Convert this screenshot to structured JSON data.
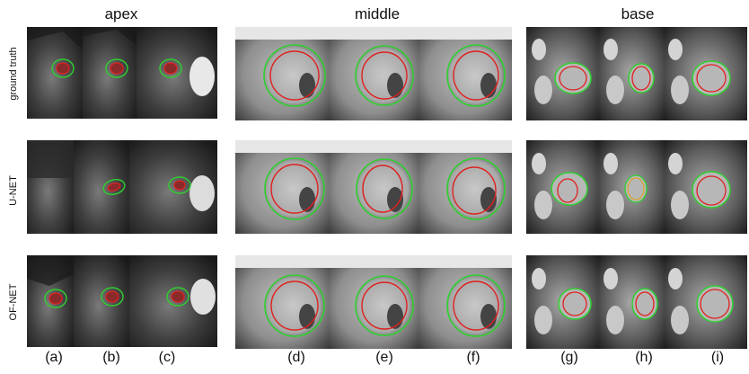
{
  "groups": {
    "apex": "apex",
    "middle": "middle",
    "base": "base"
  },
  "rows": {
    "gt": "ground truth",
    "unet": "U-NET",
    "ofnet": "OF-NET"
  },
  "panels": [
    "(a)",
    "(b)",
    "(c)",
    "(d)",
    "(e)",
    "(f)",
    "(g)",
    "(h)",
    "(i)"
  ],
  "colors": {
    "endocardium": "#e02020",
    "epicardium": "#2fd02f"
  }
}
